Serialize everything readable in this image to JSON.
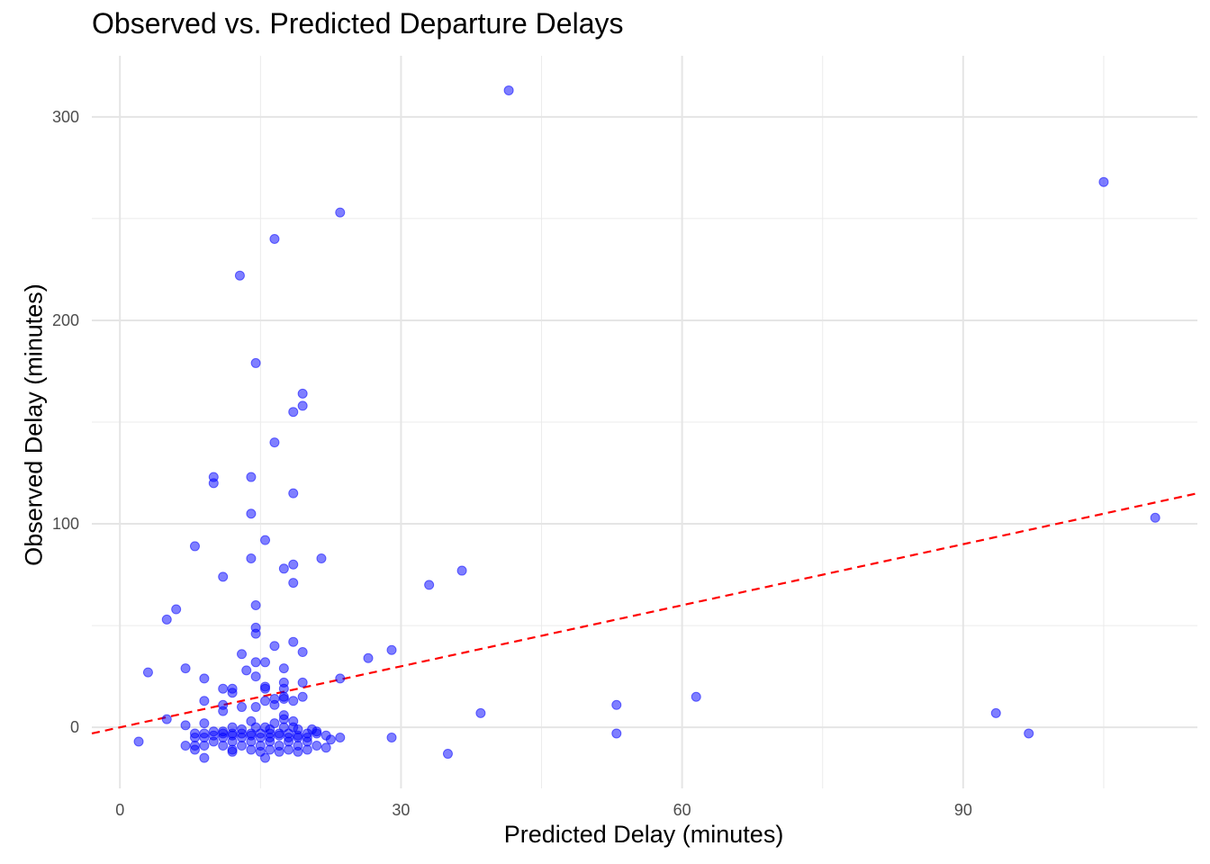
{
  "chart_data": {
    "type": "scatter",
    "title": "Observed vs. Predicted Departure Delays",
    "xlabel": "Predicted Delay (minutes)",
    "ylabel": "Observed Delay (minutes)",
    "xlim": [
      -3,
      115
    ],
    "ylim": [
      -30,
      330
    ],
    "x_ticks": [
      0,
      30,
      60,
      90
    ],
    "y_ticks": [
      0,
      100,
      200,
      300
    ],
    "grid": true,
    "point_color": "#0000ff",
    "reference_line": {
      "intercept": 0,
      "slope": 1,
      "style": "dashed",
      "color": "#ff0000"
    },
    "points": [
      [
        41.5,
        313
      ],
      [
        105,
        268
      ],
      [
        23.5,
        253
      ],
      [
        16.5,
        240
      ],
      [
        12.8,
        222
      ],
      [
        14.5,
        179
      ],
      [
        19.5,
        164
      ],
      [
        19.5,
        158
      ],
      [
        18.5,
        155
      ],
      [
        16.5,
        140
      ],
      [
        10,
        123
      ],
      [
        14,
        123
      ],
      [
        10,
        120
      ],
      [
        18.5,
        115
      ],
      [
        14,
        105
      ],
      [
        110.5,
        103
      ],
      [
        15.5,
        92
      ],
      [
        8,
        89
      ],
      [
        14,
        83
      ],
      [
        21.5,
        83
      ],
      [
        18.5,
        80
      ],
      [
        17.5,
        78
      ],
      [
        36.5,
        77
      ],
      [
        11,
        74
      ],
      [
        18.5,
        71
      ],
      [
        33,
        70
      ],
      [
        14.5,
        60
      ],
      [
        6,
        58
      ],
      [
        5,
        53
      ],
      [
        14.5,
        49
      ],
      [
        14.5,
        46
      ],
      [
        18.5,
        42
      ],
      [
        16.5,
        40
      ],
      [
        29,
        38
      ],
      [
        19.5,
        37
      ],
      [
        13,
        36
      ],
      [
        26.5,
        34
      ],
      [
        14.5,
        32
      ],
      [
        15.5,
        32
      ],
      [
        7,
        29
      ],
      [
        17.5,
        29
      ],
      [
        13.5,
        28
      ],
      [
        3,
        27
      ],
      [
        14.5,
        25
      ],
      [
        9,
        24
      ],
      [
        23.5,
        24
      ],
      [
        17.5,
        22
      ],
      [
        19.5,
        22
      ],
      [
        11,
        19
      ],
      [
        12,
        19
      ],
      [
        15.5,
        20
      ],
      [
        15.5,
        19
      ],
      [
        17.5,
        19
      ],
      [
        12,
        17
      ],
      [
        61.5,
        15
      ],
      [
        9,
        13
      ],
      [
        15.5,
        13
      ],
      [
        16.5,
        14
      ],
      [
        17.5,
        14
      ],
      [
        18.5,
        13
      ],
      [
        17.5,
        15
      ],
      [
        19.5,
        15
      ],
      [
        11,
        11
      ],
      [
        14.5,
        10
      ],
      [
        16.5,
        11
      ],
      [
        13,
        10
      ],
      [
        53,
        11
      ],
      [
        11,
        8
      ],
      [
        38.5,
        7
      ],
      [
        93.5,
        7
      ],
      [
        17.5,
        6
      ],
      [
        17.5,
        4
      ],
      [
        5,
        4
      ],
      [
        14,
        3
      ],
      [
        18.5,
        3
      ],
      [
        9,
        2
      ],
      [
        16.5,
        2
      ],
      [
        7,
        1
      ],
      [
        12,
        0
      ],
      [
        14.5,
        0
      ],
      [
        15.5,
        0
      ],
      [
        17.5,
        0
      ],
      [
        18.5,
        0
      ],
      [
        20.5,
        -1
      ],
      [
        21,
        -2
      ],
      [
        10,
        -2
      ],
      [
        11,
        -2
      ],
      [
        13,
        -1
      ],
      [
        16,
        -1
      ],
      [
        19,
        -1
      ],
      [
        8,
        -3
      ],
      [
        9,
        -3
      ],
      [
        11,
        -3
      ],
      [
        12,
        -3
      ],
      [
        13,
        -3
      ],
      [
        14,
        -3
      ],
      [
        15,
        -3
      ],
      [
        16,
        -3
      ],
      [
        17,
        -3
      ],
      [
        18,
        -3
      ],
      [
        20,
        -3
      ],
      [
        21,
        -3
      ],
      [
        10,
        -4
      ],
      [
        12,
        -4
      ],
      [
        14,
        -4
      ],
      [
        17,
        -4
      ],
      [
        19,
        -4
      ],
      [
        22,
        -4
      ],
      [
        53,
        -3
      ],
      [
        97,
        -3
      ],
      [
        8,
        -5
      ],
      [
        9,
        -5
      ],
      [
        11,
        -5
      ],
      [
        13,
        -5
      ],
      [
        15,
        -5
      ],
      [
        16,
        -5
      ],
      [
        18,
        -5
      ],
      [
        19,
        -5
      ],
      [
        20,
        -5
      ],
      [
        23.5,
        -5
      ],
      [
        29,
        -5
      ],
      [
        22.5,
        -6
      ],
      [
        2,
        -7
      ],
      [
        10,
        -7
      ],
      [
        12,
        -7
      ],
      [
        14,
        -7
      ],
      [
        16,
        -7
      ],
      [
        18,
        -7
      ],
      [
        20,
        -7
      ],
      [
        7,
        -9
      ],
      [
        8,
        -9
      ],
      [
        9,
        -9
      ],
      [
        11,
        -9
      ],
      [
        13,
        -9
      ],
      [
        15,
        -9
      ],
      [
        17,
        -9
      ],
      [
        19,
        -9
      ],
      [
        21,
        -9
      ],
      [
        22,
        -10
      ],
      [
        8,
        -11
      ],
      [
        12,
        -11
      ],
      [
        14,
        -11
      ],
      [
        16,
        -11
      ],
      [
        18,
        -11
      ],
      [
        20,
        -11
      ],
      [
        12,
        -12
      ],
      [
        15,
        -12
      ],
      [
        17,
        -12
      ],
      [
        19,
        -12
      ],
      [
        35,
        -13
      ],
      [
        9,
        -15
      ],
      [
        15.5,
        -15
      ]
    ]
  }
}
